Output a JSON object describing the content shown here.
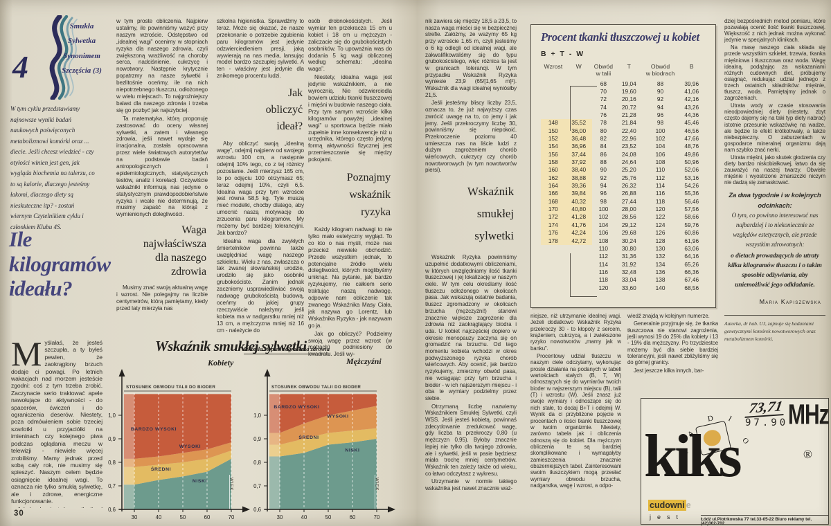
{
  "palette": {
    "paper": "#ddd8c8",
    "navy": "#3a3a68",
    "zone_low": "#6d9b8d",
    "zone_mid": "#e3bb62",
    "zone_high": "#dd9552",
    "zone_veryhigh": "#c65c3c",
    "table_highlight": "#f3e3b5",
    "ad_yellow": "#e4b83e"
  },
  "left_page": {
    "series_badge": {
      "number": "4",
      "lines": [
        "Smukła",
        "Sylwetka",
        "Synonimem",
        "Szczęścia (3)"
      ]
    },
    "intro": "W tym cyklu przedstawiamy najnowsze wyniki badań naukowych poświęconych metabolizmowi komórki oraz ... diecie. Jeśli chcesz wiedzieć - czy otyłości winien jest gen, jak wygląda biochemia na talerzu, co to są kalorie, dlaczego jesteśmy łakomi, dlaczego diety są nieskuteczne itp? - zostań wiernym Czytelnikiem cyklu i członkiem Klubu 4S.",
    "title": "Ile kilogramów ideału?",
    "page_number": "30",
    "col1": {
      "dropcap": "M",
      "paragraphs": [
        "yślałaś, że jesteś szczupła, a ty byłeś pewien, że zaokrąglony brzuch dodaje ci powagi. Po letnich wakacjach nad morzem jesteście zgodni: coś z tym trzeba zrobić. Zaczynacie serio traktować apele nawołujące do aktywności - do spacerów, ćwiczeń i do ograniczenia deserów. Niestety, poza odmówieniem sobie trzeciej szarlotki u przyjaciółki na imieninach czy kolejnego piwa podczas oglądania meczu w telewizji - niewiele więcej zrobiliśmy. Mamy jednak przed sobą cały rok, nie musimy się spieszyć. Naszym celem będzie osiągnięcie idealnej wagi. To oznacza nie tylko smukłą sylwetkę, ale i zdrowe, energiczne funkcjonowanie.",
        "Jak bardzo jesteśmy odlegli od ideału? W dużym przybliżeniu możemy to sprawdzić. Pomogą nam"
      ]
    },
    "col2": {
      "paragraphs": [
        "w tym proste obliczenia. Najpierw ustalimy, ile powinniśmy ważyć przy naszym wzroście. Odstępstwo od „idealnej wagi” ocenimy w stopniach ryzyka dla naszego zdrowia, czyli zwiększoną wrażliwość na choroby serca, nadciśnienie, cukrzycę i nowotwory. Następnie krytycznie popatrzmy na nasze sylwetki i bezlitośnie oceńmy, ile na nich niepotrzebnego tłuszczu, odłożonego w wielu miejscach. To najgroźniejszy balast dla naszego zdrowia i trzeba się go pozbyć jak najszybciej.",
        "Ta matematyka, którą proponuję zastosować do oceny własnej sylwetki, a zatem i własnego zdrowia, jeśli nawet wydaje się irracjonalna, została opracowana przez wiele światowych autorytetów na podstawie badań antropologicznych i epidemiologicznych, statystycznych testów, analiz i korelacji. Oczywiście wskaźniki informują nas jedynie o statystycznym prawdopodobieństwie ryzyka i wcale nie determinują, że musimy zapaść na którąś z wymienionych dolegliwości.",
        "Musimy znać swoją aktualną wagę i wzrost. Nie polegajmy na liczbie centymetrów, którą pamiętamy, kiedy przed laty mierzyła nas"
      ],
      "heading_lines": [
        "Waga",
        "najwłaściwsza",
        "dla naszego",
        "zdrowia"
      ]
    },
    "col3": {
      "paragraphs": [
        "szkolna higienistka. Sprawdźmy to teraz. Może się okazać, że nasze przekonanie o potrzebie zgubienia paru kilogramów jest jedynie odzwierciedleniem presji, jaką wywierają na nas media, lansując model bardzo szczupłej sylwetki. A ten - właściwy jest jedynie dla znikomego procentu ludzi.",
        "Aby obliczyć swoją „idealną wagę”, odejmij najpierw od swojego wzrostu 100 cm, a następnie odejmij 10% tego, co z tej różnicy pozostanie. Jeśli mierzysz 165 cm, to po odjęciu 100 otrzymasz 65; teraz odejmij 10%, czyli 6,5. Idealna waga przy tym wzroście jest równa 58,5 kg. Tyle muszą mieć modelki, choćby dlatego, aby umocnić naszą motywację do zrzucenia paru kilogramów. My możemy być bardziej tolerancyjni. Jak bardzo?",
        "Idealna waga dla zwykłych śmiertelników powinna także uwzględniać wagę naszego szkieletu. Wielu z nas, zwłaszcza o tak zwanej słowiańskiej urodzie, urodziło się jako osobniki grubokościste. Zanim jednak zaczniemy usprawiedliwiać swoją nadwagę grubokościstą budową, oceńmy do jakiej grupy rzeczywiście należymy: jeśli kobieta ma w nadgarstku mniej niż 13 cm, a mężczyzna mniej niż 16 cm - należycie do"
      ],
      "heading_lines": [
        "Jak",
        "obliczyć",
        "ideał?"
      ]
    },
    "col4": {
      "paragraphs": [
        "osób drobnokościstych. Jeśli wymiar ten przekracza 15 cm u kobiet i 18 cm u mężczyzn - zaliczacie się do grubokościstych osobników. To upoważnia was do dodania 5 kg wagi obliczonej według schematu: „idealna waga”.",
        "Niestety, idealna waga jest jedynie wskaźnikiem, a nie wyrocznią. Nie odzwierciedla bowiem udziału tkanki tłuszczowej i mięśni w budowie naszego ciała. Przy tym samym wzroście kilka kilogramów powyżej „idealnej wagi” u sportowca będzie miało zupełnie inne konsekwencje niż u urzędnika, którego często jedyną formą aktywności fizycznej jest przemieszczanie się między pokojami.",
        "Każdy kilogram nadwagi to nie tylko mało estetyczny wygląd. To co kto o nas myśli, może nas przecież niewiele obchodzić. Przede wszystkim jednak, to potencjalne źródło wielu dolegliwości, których moglibyśmy uniknąć. Na pytanie, jak bardzo ryzykujemy, nie całkiem serio traktując naszą nadwagę, odpowie nam obliczenie tak zwanego Wskaźnika Masy Ciała, jak nazywa go Lorentz, lub Wskaźnika Ryzyka - jak nazywam go ja.",
        "Jak go obliczyć? Podzielmy swoją wagę przez wzrost (w metrach) podniesiony do kwadratu. Jeśli wy-"
      ],
      "heading_lines": [
        "Poznajmy",
        "wskaźnik",
        "ryzyka"
      ]
    }
  },
  "charts": {
    "block_title": "Wskaźnik smukłej sylwetki",
    "block_subtitle": "Określa stopień zagrożenia zdrowia",
    "axis_top_label": "STOSUNEK OBWODU TALII DO BIODER",
    "age_label": "WIEK"
  },
  "chart_data": [
    {
      "type": "area",
      "title": "Kobiety",
      "ylabel": "STOSUNEK OBWODU TALII DO BIODER",
      "xlabel": "WIEK",
      "x": [
        30,
        40,
        50,
        60,
        70
      ],
      "xlim": [
        26,
        70
      ],
      "ylim": [
        0.6,
        1.09
      ],
      "y_ticks": [
        "1,0",
        "0,9",
        "0,8",
        "0,7",
        "0,6"
      ],
      "zones": [
        {
          "name": "NISKI",
          "color": "#6d9b8d",
          "upper": [
            0.705,
            0.725,
            0.74,
            0.76,
            0.815
          ],
          "label_at": [
            57,
            0.715
          ]
        },
        {
          "name": "ŚREDNI",
          "color": "#e3bb62",
          "upper": [
            0.78,
            0.79,
            0.8,
            0.815,
            0.85
          ],
          "label_at": [
            41,
            0.765
          ]
        },
        {
          "name": "WYSOKI",
          "color": "#dd9552",
          "upper": [
            0.815,
            0.825,
            0.84,
            0.855,
            0.885
          ],
          "label_at": [
            53,
            0.862
          ]
        },
        {
          "name": "BARDZO WYSOKI",
          "color": "#c65c3c",
          "upper": [
            1.09,
            1.09,
            1.09,
            1.09,
            1.09
          ],
          "label_at": [
            38,
            0.935
          ]
        }
      ]
    },
    {
      "type": "area",
      "title": "Mężczyźni",
      "ylabel": "STOSUNEK OBWODU TALII DO BIODER",
      "xlabel": "WIEK",
      "x": [
        30,
        40,
        50,
        60,
        70
      ],
      "xlim": [
        26,
        70
      ],
      "ylim": [
        0.6,
        1.09
      ],
      "y_ticks": [
        "1,0",
        "0,9",
        "0,8",
        "0,7",
        "0,6"
      ],
      "zones": [
        {
          "name": "NISKI",
          "color": "#6d9b8d",
          "upper": [
            0.825,
            0.84,
            0.875,
            0.885,
            0.9
          ],
          "label_at": [
            60,
            0.845
          ]
        },
        {
          "name": "ŚREDNI",
          "color": "#e3bb62",
          "upper": [
            0.875,
            0.9,
            0.925,
            0.935,
            0.945
          ],
          "label_at": [
            42,
            0.9
          ]
        },
        {
          "name": "WYSOKI",
          "color": "#dd9552",
          "upper": [
            0.925,
            0.965,
            1.0,
            1.02,
            1.04
          ],
          "label_at": [
            54,
            0.99
          ]
        },
        {
          "name": "BARDZO WYSOKI",
          "color": "#c65c3c",
          "upper": [
            1.09,
            1.09,
            1.09,
            1.09,
            1.09
          ],
          "label_at": [
            37,
            1.03
          ]
        }
      ]
    }
  ],
  "right_page": {
    "colA": {
      "paragraphs": [
        "nik zawiera się między 18,5 a 23,5, to nasza waga mieści się w bezpiecznej strefie. Załóżmy, że ważymy 65 kg przy wzroście 1,65 m, czyli jesteśmy o 6 kg odlegli od idealnej wagi, ale zakwalifikowaliśmy się do typu grubokościstego, więc różnica ta jest w granicach tolerancji. W tym przypadku Wskaźnik Ryzyka wyniesie 23,9 (65/[1,65 m]²). Wskaźnik dla wagi idealnej wyniósłby 21,5.",
        "Jeśli jesteśmy bliscy liczby 23,5, oznacza to, że już najwyższy czas zwrócić uwagę na to, co jemy i jak jemy. Jeśli przekroczymy liczbę 30, powinniśmy się niepokoić. Przekroczenie poziomu 40 umieszcza nas na liście ludzi z dużym zagrożeniem chorób wieńcowych, cukrzycy czy chorób nowotworowych (w tym nowotworów piersi).",
        "Wskaźnik Ryzyka powinniśmy uzupełnić dodatkowymi obliczeniami, w których uwzględniamy ilość tkanki tłuszczowej i jej lokalizację w naszym ciele. W tym celu określamy ilość tłuszczu odłożonego w okolicach pasa. Jak wskazują ostatnie badania, tłuszcz zgromadzony w okolicach brzucha (mężczyźni!) stanowi znacznie większe zagrożenie dla zdrowia niż zaokrąglający biodra i uda. U kobiet najczęściej dopiero w okresie menopauzy zaczyna się on gromadzić na brzuchu. Od tego momentu kobieta wchodzi w okres podwyższonego ryzyka chorób wieńcowych. Aby ocenić, jak bardzo ryzykujemy, zmierzmy obwód pasa, nie wciągając przy tym brzucha i bioder - w ich najszerszym miejscu - i oba te wymiary podzielmy przez siebie.",
        "Otrzymaną liczbę nazwiemy Wskaźnikiem Smukłej Sylwetki, czyli WSS. Jeśli jesteś kobietą, powinnaś zdecydowanie zredukować wagę, gdy liczba ta przekroczy 0,80 (u mężczyzn 0,95). Byłoby znacznie lepiej nie tylko dla twojego zdrowia, ale i sylwetki, jeśli w pasie będziesz miała trochę mniej centymetrów. Wskaźnik ten zależy także od wieku, co łatwo odczytasz z wykresu.",
        "Utrzymanie w normie takiego wskaźnika jest nawet znacznie waż-"
      ],
      "heading_lines": [
        "Wskaźnik",
        "smukłej",
        "sylwetki"
      ]
    },
    "table": {
      "title": "Procent tkanki tłuszczowej u kobiet",
      "formula": "B + T - W",
      "headers": [
        "Wzrost",
        "W",
        "Obwód|w talii",
        "T",
        "Obwód|w biodrach",
        "B"
      ],
      "rows": [
        [
          "",
          "",
          "68",
          "19,04",
          "88",
          "39,96"
        ],
        [
          "",
          "",
          "70",
          "19,60",
          "90",
          "41,06"
        ],
        [
          "",
          "",
          "72",
          "20,16",
          "92",
          "42,16"
        ],
        [
          "",
          "",
          "74",
          "20,72",
          "94",
          "43,26"
        ],
        [
          "",
          "",
          "76",
          "21,28",
          "96",
          "44,36"
        ],
        [
          "148",
          "35,52",
          "78",
          "21,84",
          "98",
          "45,46"
        ],
        [
          "150",
          "36,00",
          "80",
          "22,40",
          "100",
          "46,56"
        ],
        [
          "152",
          "36,48",
          "82",
          "22,96",
          "102",
          "47,66"
        ],
        [
          "154",
          "36,96",
          "84",
          "23,52",
          "104",
          "48,76"
        ],
        [
          "156",
          "37,44",
          "86",
          "24,08",
          "106",
          "49,86"
        ],
        [
          "158",
          "37,92",
          "88",
          "24,64",
          "108",
          "50,96"
        ],
        [
          "160",
          "38,40",
          "90",
          "25,20",
          "110",
          "52,06"
        ],
        [
          "162",
          "38,88",
          "92",
          "25,76",
          "112",
          "53,16"
        ],
        [
          "164",
          "39,36",
          "94",
          "26,32",
          "114",
          "54,26"
        ],
        [
          "166",
          "39,84",
          "96",
          "26,88",
          "116",
          "55,36"
        ],
        [
          "168",
          "40,32",
          "98",
          "27,44",
          "118",
          "56,46"
        ],
        [
          "170",
          "40,80",
          "100",
          "28,00",
          "120",
          "57,56"
        ],
        [
          "172",
          "41,28",
          "102",
          "28,56",
          "122",
          "58,66"
        ],
        [
          "174",
          "41,76",
          "104",
          "29,12",
          "124",
          "59,76"
        ],
        [
          "176",
          "42,24",
          "106",
          "29,68",
          "126",
          "60,86"
        ],
        [
          "178",
          "42,72",
          "108",
          "30,24",
          "128",
          "61,96"
        ],
        [
          "",
          "",
          "110",
          "30,80",
          "130",
          "63,06"
        ],
        [
          "",
          "",
          "112",
          "31,36",
          "132",
          "64,16"
        ],
        [
          "",
          "",
          "114",
          "31,92",
          "134",
          "65,26"
        ],
        [
          "",
          "",
          "116",
          "32,48",
          "136",
          "66,36"
        ],
        [
          "",
          "",
          "118",
          "33,04",
          "138",
          "67,46"
        ],
        [
          "",
          "",
          "120",
          "33,60",
          "140",
          "68,56"
        ]
      ]
    },
    "colB": {
      "paragraphs": [
        "niejsze, niż utrzymanie idealnej wagi. Jeżeli dodatkowo Wskaźnik Ryzyka przekroczy 30 - to kłopoty z sercem, krążeniem, cukrzycą, a i zwiekszone ryzyko nowotworów „mamy jak w banku”.",
        "Procentowy udział tłuszczu w naszym ciele odczytamy, wykonując proste działania na podanych w tabeli wartościach stałych (B, T, W) odnoszących się do wymiarów twoich bioder w najszerszym miejscu (B), talii (T) i wzrostu (W). Jeśli znasz już swoje wymiary i odnoszące się do nich stałe, to dodaj B+T i odejmij W. Wynik da ci przybliżone pojęcie w procentach o ilości tkanki tłuszczowej w twoim organizmie. Niestety, zarówno tabela jak i obliczenia odnoszą się do kobiet. Dla mężczyzn obliczenia te są bardziej skomplikowane i wymagałyby zamieszczenia znacznie obszerniejszych tabel. Zainteresowani swoim tłuszczykiem mogą przesłać wymiary obwodu brzucha, nadgarstka, wagę i wzrost, a odpo-"
      ]
    },
    "colC": {
      "paragraphs": [
        "wiedź znajdą w kolejnym numerze.",
        "Generalnie przyjmuje się, że tkanka tłuszczowa nie stanowi zagrożenia, jeśli wynosi 19 do 25% dla kobiety i 13 - 19% dla mężczyzny. Po trzydziestce możemy być dla siebie bardziej tolerancyjni, jeśli nawet zbliżyliśmy się do górnej granicy.",
        "Jest jeszcze kilka innych, bar-"
      ]
    },
    "colD": {
      "paragraphs": [
        "dziej bezpośrednich metod pomiaru, które pozwalają ocenić ilość tkanki tłuszczowej. Większość z nich jednak można wykonać jedynie w specjalnych klinikach.",
        "Na masę naszego ciała składa się przede wszystkim szkielet, trzewia, tkanka mięśniowa i tłuszczowa oraz woda. Wagę idealną, podążając za wskazaniami różnych cudownych diet, próbujemy osiągnąć, redukując udział jednego z trzech ostatnich składników: mięśnie, tłuszcz, woda. Pamiętajmy jednak o zagrożeniach.",
        "Utrata wody w czasie stosowania nieodpowiedniej diety (niestety, zbyt często dajemy się na taki typ diety nabrać) istotnie przesunie wskazówkę na wadze, ale będzie to efekt krótkotrwały, a także niebezpieczny. O zaburzeniach w gospodarce mineralnej organizmu dają nam szybko znać nerki.",
        "Utrata mięśni, jako skutek głodzenia czy diety bardzo niskobiałkowej, łatwo da się zauważyć na naszej twarzy. Obwisłe mięśnie i wyostrzone zmarszczki niczym nie dadzą się zamaskować."
      ]
    },
    "teaser": {
      "heading": "Za dwa tygodnie i w kolejnych odcinkach:",
      "text": "O tym, co powinno interesować nas najbardziej i to niekoniecznie ze względów estetycznych, ale przede wszystkim zdrowotnych:",
      "bold": "o dietach prowadzących do utraty kilku kilogramów tłuszczu i o takim sposobie odżywiania, aby uniemożliwić jego odkładanie."
    },
    "author": "Maria Kapiszewska",
    "bio": "Autorka, dr hab. UJ, zajmuje się badaniami genetycznymi komórek nowotworowych oraz metabolizmem komórki.",
    "ad": {
      "freq_old": "73,71",
      "freq_new": "97.90",
      "unit": "MHz",
      "radio_letters": [
        "R",
        "A",
        "D",
        "I",
        "O"
      ],
      "brand": "kiks",
      "reg": "®",
      "tagline_hl": "cudowni",
      "tagline_ghost": "e",
      "tagline2": "jest",
      "address": "Łódź ul.Piotrkowska 77 tel.33-05-22   Biuro reklamy tel.(42)302-702"
    }
  }
}
